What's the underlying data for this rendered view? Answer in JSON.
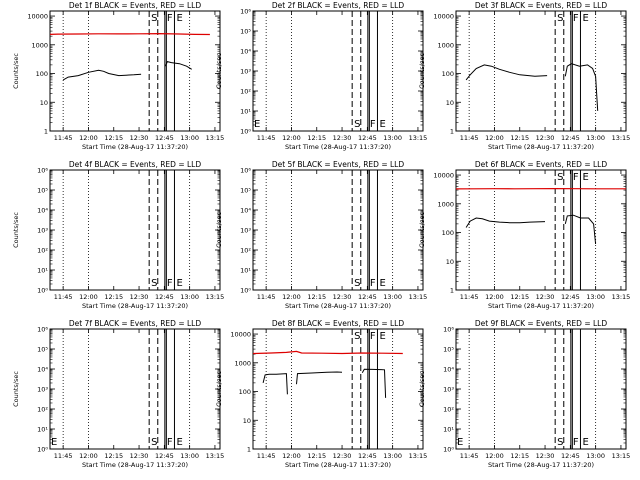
{
  "chart_data": [
    {
      "title": "Det 1f BLACK = Events, RED = LLD",
      "xlabel": "Start Time (28-Aug-17 11:37:20)",
      "ylabel": "Counts/sec",
      "yscale": "log",
      "ylim": [
        1,
        15000
      ],
      "ytick_labels": [
        "1",
        "10",
        "100",
        "1000",
        "10000"
      ],
      "xlim": [
        11.62,
        13.3
      ],
      "xtick_labels": [
        "11:45",
        "12:00",
        "12:15",
        "12:30",
        "12:45",
        "13:00",
        "13:15"
      ],
      "markers": [
        {
          "label": "S",
          "t": 12.6
        },
        {
          "label": "F",
          "t": 12.755
        },
        {
          "label": "E",
          "t": 12.85
        }
      ],
      "series": [
        {
          "color": "#dd0000",
          "segments": [
            [
              [
                11.62,
                2300
              ],
              [
                11.7,
                2350
              ],
              [
                11.9,
                2380
              ],
              [
                12.1,
                2420
              ],
              [
                12.3,
                2400
              ],
              [
                12.5,
                2420
              ],
              [
                12.7,
                2450
              ],
              [
                12.9,
                2380
              ],
              [
                13.05,
                2300
              ],
              [
                13.2,
                2280
              ]
            ]
          ]
        },
        {
          "color": "#000000",
          "segments": [
            [
              [
                11.75,
                60
              ],
              [
                11.8,
                75
              ],
              [
                11.9,
                85
              ],
              [
                12.0,
                110
              ],
              [
                12.1,
                130
              ],
              [
                12.15,
                120
              ],
              [
                12.2,
                100
              ],
              [
                12.3,
                85
              ],
              [
                12.45,
                90
              ],
              [
                12.52,
                95
              ]
            ],
            [
              [
                12.76,
                180
              ],
              [
                12.78,
                260
              ],
              [
                12.82,
                240
              ],
              [
                12.9,
                220
              ],
              [
                12.97,
                180
              ],
              [
                13.02,
                140
              ]
            ]
          ]
        }
      ]
    },
    {
      "title": "Det 2f BLACK = Events, RED = LLD",
      "xlabel": "Start Time (28-Aug-17 11:37:20)",
      "ylabel": "Counts/sec",
      "yscale": "log",
      "ylim": [
        1,
        1000000
      ],
      "ytick_labels": [
        "10⁰",
        "10¹",
        "10²",
        "10³",
        "10⁴",
        "10⁵",
        "10⁶"
      ],
      "xlim": [
        11.62,
        13.3
      ],
      "xtick_labels": [
        "11:45",
        "12:00",
        "12:15",
        "12:30",
        "12:45",
        "13:00",
        "13:15"
      ],
      "markers": [
        {
          "label": "E",
          "t": 11.62
        },
        {
          "label": "S",
          "t": 12.6
        },
        {
          "label": "F",
          "t": 12.755
        },
        {
          "label": "E",
          "t": 12.85
        }
      ],
      "series": []
    },
    {
      "title": "Det 3f BLACK = Events, RED = LLD",
      "xlabel": "Start Time (28-Aug-17 11:37:20)",
      "ylabel": "Counts/sec",
      "yscale": "log",
      "ylim": [
        1,
        15000
      ],
      "ytick_labels": [
        "1",
        "10",
        "100",
        "1000",
        "10000"
      ],
      "xlim": [
        11.62,
        13.3
      ],
      "xtick_labels": [
        "11:45",
        "12:00",
        "12:15",
        "12:30",
        "12:45",
        "13:00",
        "13:15"
      ],
      "markers": [
        {
          "label": "S",
          "t": 12.6
        },
        {
          "label": "F",
          "t": 12.755
        },
        {
          "label": "E",
          "t": 12.85
        }
      ],
      "series": [
        {
          "color": "#000000",
          "segments": [
            [
              [
                11.72,
                60
              ],
              [
                11.76,
                90
              ],
              [
                11.82,
                150
              ],
              [
                11.9,
                200
              ],
              [
                11.97,
                180
              ],
              [
                12.05,
                140
              ],
              [
                12.15,
                110
              ],
              [
                12.25,
                90
              ],
              [
                12.4,
                80
              ],
              [
                12.52,
                85
              ]
            ],
            [
              [
                12.7,
                80
              ],
              [
                12.72,
                180
              ],
              [
                12.76,
                220
              ],
              [
                12.84,
                180
              ],
              [
                12.92,
                200
              ],
              [
                12.97,
                150
              ],
              [
                13.0,
                80
              ],
              [
                13.02,
                5
              ]
            ]
          ]
        }
      ]
    },
    {
      "title": "Det 4f BLACK = Events, RED = LLD",
      "xlabel": "Start Time (28-Aug-17 11:37:20)",
      "ylabel": "Counts/sec",
      "yscale": "log",
      "ylim": [
        1,
        1000000
      ],
      "ytick_labels": [
        "10⁰",
        "10¹",
        "10²",
        "10³",
        "10⁴",
        "10⁵",
        "10⁶"
      ],
      "xlim": [
        11.62,
        13.3
      ],
      "xtick_labels": [
        "11:45",
        "12:00",
        "12:15",
        "12:30",
        "12:45",
        "13:00",
        "13:15"
      ],
      "markers": [
        {
          "label": "S",
          "t": 12.6
        },
        {
          "label": "F",
          "t": 12.755
        },
        {
          "label": "E",
          "t": 12.85
        }
      ],
      "series": []
    },
    {
      "title": "Det 5f BLACK = Events, RED = LLD",
      "xlabel": "Start Time (28-Aug-17 11:37:20)",
      "ylabel": "Counts/sec",
      "yscale": "log",
      "ylim": [
        1,
        1000000
      ],
      "ytick_labels": [
        "10⁰",
        "10¹",
        "10²",
        "10³",
        "10⁴",
        "10⁵",
        "10⁶"
      ],
      "xlim": [
        11.62,
        13.3
      ],
      "xtick_labels": [
        "11:45",
        "12:00",
        "12:15",
        "12:30",
        "12:45",
        "13:00",
        "13:15"
      ],
      "markers": [
        {
          "label": "S",
          "t": 12.6
        },
        {
          "label": "F",
          "t": 12.755
        },
        {
          "label": "E",
          "t": 12.85
        }
      ],
      "series": []
    },
    {
      "title": "Det 6f BLACK = Events, RED = LLD",
      "xlabel": "Start Time (28-Aug-17 11:37:20)",
      "ylabel": "Counts/sec",
      "yscale": "log",
      "ylim": [
        1,
        15000
      ],
      "ytick_labels": [
        "1",
        "10",
        "100",
        "1000",
        "10000"
      ],
      "xlim": [
        11.62,
        13.3
      ],
      "xtick_labels": [
        "11:45",
        "12:00",
        "12:15",
        "12:30",
        "12:45",
        "13:00",
        "13:15"
      ],
      "markers": [
        {
          "label": "S",
          "t": 12.6
        },
        {
          "label": "F",
          "t": 12.755
        },
        {
          "label": "E",
          "t": 12.85
        }
      ],
      "series": [
        {
          "color": "#dd0000",
          "segments": [
            [
              [
                11.62,
                3300
              ],
              [
                11.8,
                3320
              ],
              [
                12.0,
                3350
              ],
              [
                12.2,
                3330
              ],
              [
                12.4,
                3350
              ],
              [
                12.6,
                3380
              ],
              [
                12.8,
                3340
              ],
              [
                13.0,
                3320
              ],
              [
                13.3,
                3330
              ]
            ]
          ]
        },
        {
          "color": "#000000",
          "segments": [
            [
              [
                11.72,
                150
              ],
              [
                11.76,
                250
              ],
              [
                11.82,
                320
              ],
              [
                11.88,
                300
              ],
              [
                11.95,
                250
              ],
              [
                12.05,
                230
              ],
              [
                12.15,
                220
              ],
              [
                12.25,
                220
              ],
              [
                12.35,
                230
              ],
              [
                12.5,
                240
              ]
            ],
            [
              [
                12.7,
                200
              ],
              [
                12.72,
                380
              ],
              [
                12.78,
                400
              ],
              [
                12.85,
                320
              ],
              [
                12.93,
                320
              ],
              [
                12.98,
                200
              ],
              [
                13.0,
                40
              ]
            ]
          ]
        }
      ]
    },
    {
      "title": "Det 7f BLACK = Events, RED = LLD",
      "xlabel": "Start Time (28-Aug-17 11:37:20)",
      "ylabel": "Counts/sec",
      "yscale": "log",
      "ylim": [
        1,
        1000000
      ],
      "ytick_labels": [
        "10⁰",
        "10¹",
        "10²",
        "10³",
        "10⁴",
        "10⁵",
        "10⁶"
      ],
      "xlim": [
        11.62,
        13.3
      ],
      "xtick_labels": [
        "11:45",
        "12:00",
        "12:15",
        "12:30",
        "12:45",
        "13:00",
        "13:15"
      ],
      "markers": [
        {
          "label": "E",
          "t": 11.62
        },
        {
          "label": "S",
          "t": 12.6
        },
        {
          "label": "F",
          "t": 12.755
        },
        {
          "label": "E",
          "t": 12.85
        }
      ],
      "series": []
    },
    {
      "title": "Det 8f BLACK = Events, RED = LLD",
      "xlabel": "Start Time (28-Aug-17 11:37:20)",
      "ylabel": "Counts/sec",
      "yscale": "log",
      "ylim": [
        1,
        15000
      ],
      "ytick_labels": [
        "1",
        "10",
        "100",
        "1000",
        "10000"
      ],
      "xlim": [
        11.62,
        13.3
      ],
      "xtick_labels": [
        "11:45",
        "12:00",
        "12:15",
        "12:30",
        "12:45",
        "13:00",
        "13:15"
      ],
      "markers": [
        {
          "label": "S",
          "t": 12.6
        },
        {
          "label": "F",
          "t": 12.755
        },
        {
          "label": "E",
          "t": 12.85
        }
      ],
      "series": [
        {
          "color": "#dd0000",
          "segments": [
            [
              [
                11.62,
                2100
              ],
              [
                11.8,
                2200
              ],
              [
                11.95,
                2300
              ],
              [
                12.05,
                2500
              ],
              [
                12.1,
                2200
              ],
              [
                12.3,
                2150
              ],
              [
                12.5,
                2100
              ],
              [
                12.7,
                2200
              ],
              [
                12.9,
                2150
              ],
              [
                13.1,
                2100
              ]
            ]
          ]
        },
        {
          "color": "#000000",
          "segments": [
            [
              [
                11.72,
                200
              ],
              [
                11.74,
                380
              ],
              [
                11.78,
                400
              ],
              [
                11.85,
                400
              ],
              [
                11.95,
                420
              ],
              [
                11.96,
                80
              ]
            ],
            [
              [
                12.05,
                180
              ],
              [
                12.06,
                420
              ],
              [
                12.2,
                440
              ],
              [
                12.35,
                470
              ],
              [
                12.45,
                480
              ],
              [
                12.5,
                470
              ]
            ],
            [
              [
                12.7,
                450
              ],
              [
                12.72,
                600
              ],
              [
                12.8,
                590
              ],
              [
                12.88,
                580
              ],
              [
                12.92,
                570
              ],
              [
                12.93,
                60
              ]
            ]
          ]
        }
      ]
    },
    {
      "title": "Det 9f BLACK = Events, RED = LLD",
      "xlabel": "Start Time (28-Aug-17 11:37:20)",
      "ylabel": "Counts/sec",
      "yscale": "log",
      "ylim": [
        1,
        1000000
      ],
      "ytick_labels": [
        "10⁰",
        "10¹",
        "10²",
        "10³",
        "10⁴",
        "10⁵",
        "10⁶"
      ],
      "xlim": [
        11.62,
        13.3
      ],
      "xtick_labels": [
        "11:45",
        "12:00",
        "12:15",
        "12:30",
        "12:45",
        "13:00",
        "13:15"
      ],
      "markers": [
        {
          "label": "E",
          "t": 11.62
        },
        {
          "label": "S",
          "t": 12.6
        },
        {
          "label": "F",
          "t": 12.755
        },
        {
          "label": "E",
          "t": 12.85
        }
      ],
      "series": []
    }
  ]
}
